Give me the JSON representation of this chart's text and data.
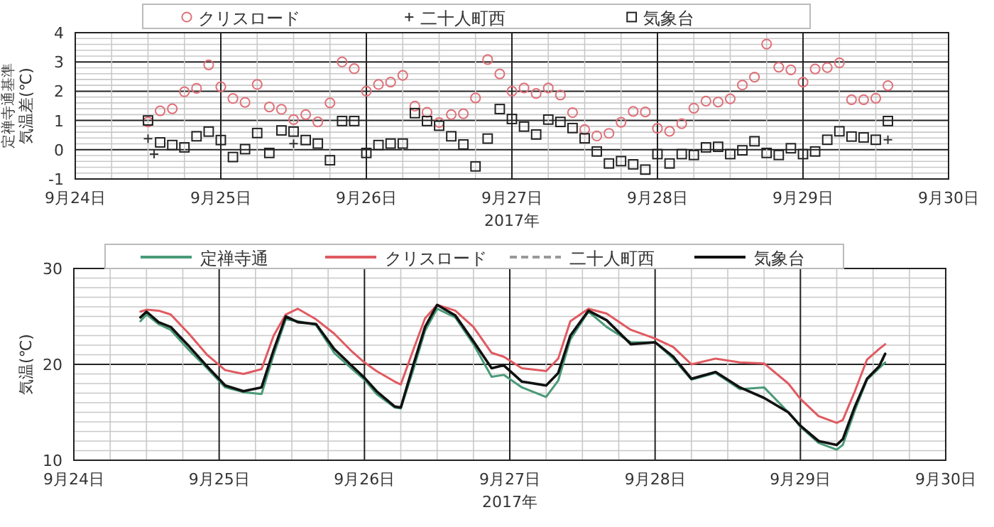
{
  "chart_data": [
    {
      "type": "scatter",
      "ylabel": "気温差(℃)",
      "xlabel": "2017年",
      "annotations": [
        "定禅寺通基準"
      ],
      "legend": "top",
      "grid": true,
      "xlim": [
        "2017-09-24",
        "2017-09-30"
      ],
      "xticks": [
        {
          "value": "2017-09-24",
          "label": "9月24日"
        },
        {
          "value": "2017-09-24T06:00",
          "label": null
        },
        {
          "value": "2017-09-24T12:00",
          "label": null
        },
        {
          "value": "2017-09-24T18:00",
          "label": null
        },
        {
          "value": "2017-09-25",
          "label": "9月25日"
        },
        {
          "value": "2017-09-25T06:00",
          "label": null
        },
        {
          "value": "2017-09-25T12:00",
          "label": null
        },
        {
          "value": "2017-09-25T18:00",
          "label": null
        },
        {
          "value": "2017-09-26",
          "label": "9月26日"
        },
        {
          "value": "2017-09-26T06:00",
          "label": null
        },
        {
          "value": "2017-09-26T12:00",
          "label": null
        },
        {
          "value": "2017-09-26T18:00",
          "label": null
        },
        {
          "value": "2017-09-27",
          "label": "9月27日"
        },
        {
          "value": "2017-09-27T06:00",
          "label": null
        },
        {
          "value": "2017-09-27T12:00",
          "label": null
        },
        {
          "value": "2017-09-27T18:00",
          "label": null
        },
        {
          "value": "2017-09-28",
          "label": "9月28日"
        },
        {
          "value": "2017-09-28T06:00",
          "label": null
        },
        {
          "value": "2017-09-28T12:00",
          "label": null
        },
        {
          "value": "2017-09-28T18:00",
          "label": null
        },
        {
          "value": "2017-09-29",
          "label": "9月29日"
        },
        {
          "value": "2017-09-29T06:00",
          "label": null
        },
        {
          "value": "2017-09-29T12:00",
          "label": null
        },
        {
          "value": "2017-09-29T18:00",
          "label": null
        },
        {
          "value": "2017-09-30",
          "label": "9月30日"
        }
      ],
      "ylim": [
        -1,
        4
      ],
      "yticks": [
        -1,
        {
          "value": -0.8,
          "label": null
        },
        {
          "value": -0.6,
          "label": null
        },
        {
          "value": -0.4,
          "label": null
        },
        {
          "value": -0.2,
          "label": null
        },
        0,
        {
          "value": 0.2,
          "label": null
        },
        {
          "value": 0.4,
          "label": null
        },
        {
          "value": 0.6,
          "label": null
        },
        {
          "value": 0.8,
          "label": null
        },
        1,
        {
          "value": 1.2,
          "label": null
        },
        {
          "value": 1.4,
          "label": null
        },
        {
          "value": 1.6,
          "label": null
        },
        {
          "value": 1.8,
          "label": null
        },
        2,
        {
          "value": 2.2,
          "label": null
        },
        {
          "value": 2.4,
          "label": null
        },
        {
          "value": 2.6,
          "label": null
        },
        {
          "value": 2.8,
          "label": null
        },
        3,
        {
          "value": 3.2,
          "label": null
        },
        {
          "value": 3.4,
          "label": null
        },
        {
          "value": 3.6,
          "label": null
        },
        {
          "value": 3.8,
          "label": null
        },
        4
      ],
      "x": [
        "2017-09-24T12:00",
        "2017-09-24T14:00",
        "2017-09-24T16:00",
        "2017-09-24T18:00",
        "2017-09-24T20:00",
        "2017-09-24T22:00",
        "2017-09-25T00:00",
        "2017-09-25T02:00",
        "2017-09-25T04:00",
        "2017-09-25T06:00",
        "2017-09-25T08:00",
        "2017-09-25T10:00",
        "2017-09-25T12:00",
        "2017-09-25T14:00",
        "2017-09-25T16:00",
        "2017-09-25T18:00",
        "2017-09-25T20:00",
        "2017-09-25T22:00",
        "2017-09-26T00:00",
        "2017-09-26T02:00",
        "2017-09-26T04:00",
        "2017-09-26T06:00",
        "2017-09-26T08:00",
        "2017-09-26T10:00",
        "2017-09-26T12:00",
        "2017-09-26T14:00",
        "2017-09-26T16:00",
        "2017-09-26T18:00",
        "2017-09-26T20:00",
        "2017-09-26T22:00",
        "2017-09-27T00:00",
        "2017-09-27T02:00",
        "2017-09-27T04:00",
        "2017-09-27T06:00",
        "2017-09-27T08:00",
        "2017-09-27T10:00",
        "2017-09-27T12:00",
        "2017-09-27T14:00",
        "2017-09-27T16:00",
        "2017-09-27T18:00",
        "2017-09-27T20:00",
        "2017-09-27T22:00",
        "2017-09-28T00:00",
        "2017-09-28T02:00",
        "2017-09-28T04:00",
        "2017-09-28T06:00",
        "2017-09-28T08:00",
        "2017-09-28T10:00",
        "2017-09-28T12:00",
        "2017-09-28T14:00",
        "2017-09-28T16:00",
        "2017-09-28T18:00",
        "2017-09-28T20:00",
        "2017-09-28T22:00",
        "2017-09-29T00:00",
        "2017-09-29T02:00",
        "2017-09-29T04:00",
        "2017-09-29T06:00",
        "2017-09-29T08:00",
        "2017-09-29T10:00",
        "2017-09-29T12:00",
        "2017-09-29T14:00"
      ],
      "series": [
        {
          "name": "クリスロード",
          "color": "#e07078",
          "marker": "circle",
          "values": [
            0.95,
            1.33,
            1.4,
            1.98,
            2.1,
            2.9,
            2.15,
            1.75,
            1.62,
            2.23,
            1.46,
            1.38,
            1.03,
            1.2,
            0.95,
            1.6,
            3.0,
            2.77,
            2.0,
            2.23,
            2.31,
            2.54,
            1.49,
            1.28,
            0.93,
            1.2,
            1.23,
            1.77,
            3.08,
            2.59,
            2.0,
            2.11,
            1.92,
            2.11,
            1.87,
            1.27,
            0.69,
            0.47,
            0.56,
            0.94,
            1.31,
            1.29,
            0.73,
            0.63,
            0.89,
            1.42,
            1.66,
            1.63,
            1.74,
            2.21,
            2.48,
            3.61,
            2.82,
            2.73,
            2.31,
            2.76,
            2.81,
            2.97,
            1.71,
            1.71,
            1.76,
            2.19
          ]
        },
        {
          "name": "二十人町西",
          "color": "#333333",
          "marker": "cross",
          "x": [
            "2017-09-24T12:00",
            "2017-09-24T13:00",
            "2017-09-25T12:00",
            "2017-09-29T14:00"
          ],
          "values": [
            0.38,
            -0.15,
            0.21,
            0.34
          ]
        },
        {
          "name": "気象台",
          "color": "#222222",
          "marker": "square",
          "values": [
            1.0,
            0.25,
            0.16,
            0.08,
            0.46,
            0.62,
            0.33,
            -0.25,
            0.02,
            0.57,
            -0.11,
            0.66,
            0.62,
            0.33,
            0.21,
            -0.36,
            0.98,
            0.98,
            -0.11,
            0.16,
            0.21,
            0.21,
            1.25,
            0.98,
            0.82,
            0.46,
            0.18,
            -0.57,
            0.38,
            1.39,
            1.05,
            0.79,
            0.52,
            1.03,
            0.95,
            0.74,
            0.39,
            -0.06,
            -0.47,
            -0.39,
            -0.5,
            -0.68,
            -0.15,
            -0.47,
            -0.15,
            -0.18,
            0.08,
            0.1,
            -0.15,
            -0.02,
            0.29,
            -0.11,
            -0.18,
            0.05,
            -0.15,
            -0.06,
            0.34,
            0.63,
            0.45,
            0.42,
            0.34,
            0.98
          ]
        }
      ]
    },
    {
      "type": "line",
      "ylabel": "気温(℃)",
      "xlabel": "2017年",
      "legend": "top",
      "grid": true,
      "xlim": [
        "2017-09-24",
        "2017-09-30"
      ],
      "xticks": [
        {
          "value": "2017-09-24",
          "label": "9月24日"
        },
        {
          "value": "2017-09-24T06:00",
          "label": null
        },
        {
          "value": "2017-09-24T12:00",
          "label": null
        },
        {
          "value": "2017-09-24T18:00",
          "label": null
        },
        {
          "value": "2017-09-25",
          "label": "9月25日"
        },
        {
          "value": "2017-09-25T06:00",
          "label": null
        },
        {
          "value": "2017-09-25T12:00",
          "label": null
        },
        {
          "value": "2017-09-25T18:00",
          "label": null
        },
        {
          "value": "2017-09-26",
          "label": "9月26日"
        },
        {
          "value": "2017-09-26T06:00",
          "label": null
        },
        {
          "value": "2017-09-26T12:00",
          "label": null
        },
        {
          "value": "2017-09-26T18:00",
          "label": null
        },
        {
          "value": "2017-09-27",
          "label": "9月27日"
        },
        {
          "value": "2017-09-27T06:00",
          "label": null
        },
        {
          "value": "2017-09-27T12:00",
          "label": null
        },
        {
          "value": "2017-09-27T18:00",
          "label": null
        },
        {
          "value": "2017-09-28",
          "label": "9月28日"
        },
        {
          "value": "2017-09-28T06:00",
          "label": null
        },
        {
          "value": "2017-09-28T12:00",
          "label": null
        },
        {
          "value": "2017-09-28T18:00",
          "label": null
        },
        {
          "value": "2017-09-29",
          "label": "9月29日"
        },
        {
          "value": "2017-09-29T06:00",
          "label": null
        },
        {
          "value": "2017-09-29T12:00",
          "label": null
        },
        {
          "value": "2017-09-29T18:00",
          "label": null
        },
        {
          "value": "2017-09-30",
          "label": "9月30日"
        }
      ],
      "ylim": [
        10,
        30
      ],
      "yticks": [
        10,
        {
          "value": 11,
          "label": null
        },
        {
          "value": 12,
          "label": null
        },
        {
          "value": 13,
          "label": null
        },
        {
          "value": 14,
          "label": null
        },
        {
          "value": 15,
          "label": null
        },
        {
          "value": 16,
          "label": null
        },
        {
          "value": 17,
          "label": null
        },
        {
          "value": 18,
          "label": null
        },
        {
          "value": 19,
          "label": null
        },
        20,
        {
          "value": 21,
          "label": null
        },
        {
          "value": 22,
          "label": null
        },
        {
          "value": 23,
          "label": null
        },
        {
          "value": 24,
          "label": null
        },
        {
          "value": 25,
          "label": null
        },
        {
          "value": 26,
          "label": null
        },
        {
          "value": 27,
          "label": null
        },
        {
          "value": 28,
          "label": null
        },
        {
          "value": 29,
          "label": null
        },
        30
      ],
      "x": [
        "2017-09-24T11:00",
        "2017-09-24T12:00",
        "2017-09-24T14:00",
        "2017-09-24T16:00",
        "2017-09-24T19:00",
        "2017-09-24T22:00",
        "2017-09-25T01:00",
        "2017-09-25T04:00",
        "2017-09-25T07:00",
        "2017-09-25T09:00",
        "2017-09-25T11:00",
        "2017-09-25T13:00",
        "2017-09-25T16:00",
        "2017-09-25T19:00",
        "2017-09-25T22:00",
        "2017-09-26T00:00",
        "2017-09-26T02:00",
        "2017-09-26T05:00",
        "2017-09-26T06:00",
        "2017-09-26T08:00",
        "2017-09-26T10:00",
        "2017-09-26T12:00",
        "2017-09-26T15:00",
        "2017-09-26T18:00",
        "2017-09-26T21:00",
        "2017-09-26T23:00",
        "2017-09-27T02:00",
        "2017-09-27T06:00",
        "2017-09-27T08:00",
        "2017-09-27T10:00",
        "2017-09-27T13:00",
        "2017-09-27T16:00",
        "2017-09-27T20:00",
        "2017-09-28T00:00",
        "2017-09-28T03:00",
        "2017-09-28T06:00",
        "2017-09-28T10:00",
        "2017-09-28T14:00",
        "2017-09-28T18:00",
        "2017-09-28T22:00",
        "2017-09-29T00:00",
        "2017-09-29T03:00",
        "2017-09-29T06:00",
        "2017-09-29T07:00",
        "2017-09-29T09:00",
        "2017-09-29T11:00",
        "2017-09-29T13:00",
        "2017-09-29T14:00"
      ],
      "series": [
        {
          "name": "定禅寺通",
          "color": "#4a9a78",
          "line_style": "solid",
          "values": [
            24.5,
            25.2,
            24.2,
            23.6,
            21.5,
            19.6,
            17.6,
            17.1,
            16.9,
            21.0,
            24.7,
            24.5,
            24.1,
            21.2,
            19.5,
            18.4,
            16.9,
            15.5,
            15.4,
            19.3,
            23.5,
            25.8,
            24.9,
            22.1,
            18.7,
            18.9,
            17.6,
            16.6,
            18.3,
            22.6,
            25.5,
            23.9,
            22.3,
            22.3,
            20.6,
            18.4,
            19.1,
            17.4,
            17.6,
            15.0,
            13.5,
            11.8,
            11.1,
            11.6,
            15.2,
            18.4,
            19.6,
            20.2
          ]
        },
        {
          "name": "クリスロード",
          "color": "#e05a60",
          "line_style": "solid",
          "values": [
            25.5,
            25.7,
            25.6,
            25.2,
            23.2,
            21.0,
            19.4,
            19.0,
            19.5,
            23.0,
            25.2,
            25.8,
            24.7,
            23.2,
            21.3,
            20.2,
            19.3,
            18.2,
            17.9,
            21.4,
            24.8,
            26.2,
            25.6,
            23.9,
            21.2,
            20.8,
            19.6,
            19.3,
            20.6,
            24.5,
            25.8,
            25.3,
            23.6,
            22.7,
            21.8,
            20.0,
            20.6,
            20.2,
            20.1,
            18.0,
            16.4,
            14.6,
            13.9,
            14.2,
            17.2,
            20.5,
            21.6,
            22.1
          ]
        },
        {
          "name": "二十人町西",
          "color": "#999999",
          "line_style": "dashed",
          "values": [
            null,
            null,
            null,
            null,
            null,
            null,
            null,
            null,
            null,
            null,
            null,
            null,
            null,
            null,
            null,
            null,
            null,
            null,
            null,
            null,
            null,
            null,
            null,
            null,
            null,
            null,
            null,
            null,
            null,
            null,
            null,
            null,
            null,
            null,
            null,
            null,
            null,
            null,
            null,
            null,
            null,
            null,
            null,
            null,
            null,
            null,
            19.9,
            20.8
          ]
        },
        {
          "name": "気象台",
          "color": "#111111",
          "line_style": "solid",
          "values": [
            24.9,
            25.5,
            24.4,
            23.9,
            21.9,
            19.8,
            17.8,
            17.2,
            17.6,
            21.5,
            25.0,
            24.4,
            24.2,
            21.6,
            19.8,
            18.6,
            17.2,
            15.6,
            15.5,
            19.8,
            23.9,
            26.2,
            25.1,
            22.4,
            19.6,
            19.9,
            18.2,
            17.8,
            19.1,
            23.0,
            25.6,
            24.6,
            22.1,
            22.3,
            20.8,
            18.5,
            19.2,
            17.6,
            16.5,
            15.0,
            13.6,
            12.0,
            11.6,
            12.2,
            15.6,
            18.5,
            19.8,
            21.1
          ]
        }
      ]
    }
  ]
}
